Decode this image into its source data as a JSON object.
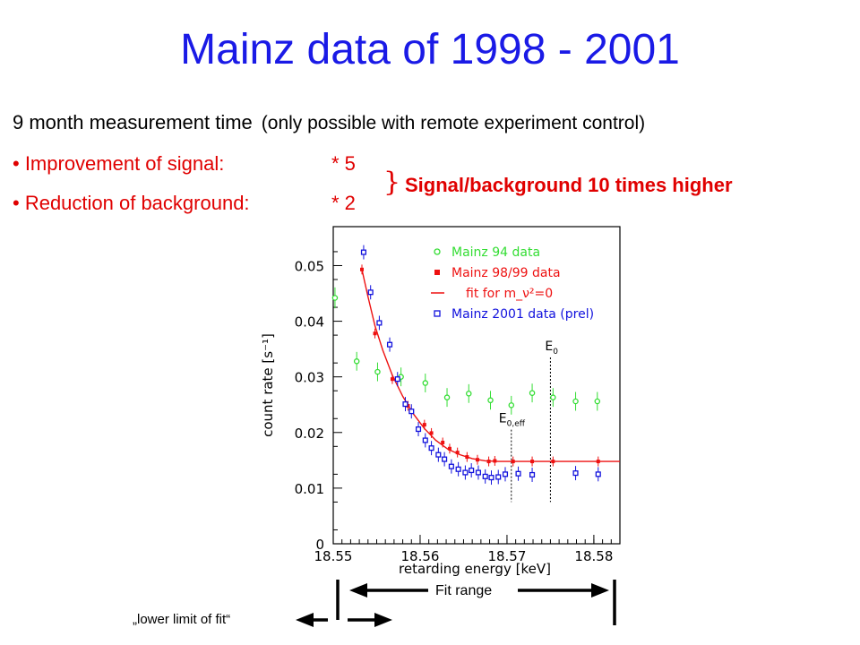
{
  "slide": {
    "title": "Mainz data of 1998 - 2001",
    "line1_main": "9 month measurement time",
    "line1_note": "(only possible with remote experiment control)",
    "bullet1_label": "• Improvement of signal:",
    "bullet1_value": "* 5",
    "bullet2_label": "• Reduction of background:",
    "bullet2_value": "* 2",
    "brace": "}",
    "signal_background": "Signal/background 10 times higher",
    "fit_range_label": "Fit range",
    "lower_limit_label": "„lower limit of fit“"
  },
  "colors": {
    "title": "#1a1ae6",
    "bullets": "#e00000",
    "mainz94": "#33dd33",
    "mainz9899": "#ee1111",
    "fit": "#ee1111",
    "mainz2001": "#1111dd"
  },
  "chart_data": {
    "type": "scatter",
    "xlabel": "retarding energy [keV]",
    "ylabel": "count rate [s⁻¹]",
    "xlim": [
      18.55,
      18.583
    ],
    "ylim": [
      0,
      0.057
    ],
    "x_ticks": [
      18.55,
      18.56,
      18.57,
      18.58
    ],
    "x_tick_labels": [
      "18.55",
      "18.56",
      "18.57",
      "18.58"
    ],
    "y_ticks": [
      0,
      0.01,
      0.02,
      0.03,
      0.04,
      0.05
    ],
    "y_tick_labels": [
      "0",
      "0.01",
      "0.02",
      "0.03",
      "0.04",
      "0.05"
    ],
    "legend_position": "top-right",
    "legend": [
      "Mainz 94 data",
      "Mainz 98/99 data",
      "fit for m_ν²=0",
      "Mainz 2001 data (prel)"
    ],
    "annotations": [
      {
        "label": "E",
        "sub": "0,eff",
        "x": 18.5705,
        "y_top": 0.0205
      },
      {
        "label": "E",
        "sub": "0",
        "x": 18.575,
        "y_top": 0.0335
      }
    ],
    "series": [
      {
        "name": "Mainz 94 data",
        "marker": "open-circle",
        "color": "#33dd33",
        "x": [
          18.5502,
          18.5527,
          18.5551,
          18.5578,
          18.5606,
          18.5631,
          18.5656,
          18.5681,
          18.5705,
          18.5729,
          18.5753,
          18.5779,
          18.5804
        ],
        "y": [
          0.0442,
          0.0328,
          0.0309,
          0.03,
          0.0289,
          0.0263,
          0.027,
          0.0258,
          0.0249,
          0.0271,
          0.0263,
          0.0256,
          0.0256
        ],
        "err": [
          0.0014,
          0.0012,
          0.0012,
          0.0012,
          0.0012,
          0.0012,
          0.0012,
          0.0012,
          0.0012,
          0.0012,
          0.0012,
          0.0012,
          0.0012
        ]
      },
      {
        "name": "Mainz 98/99 data",
        "marker": "filled-square",
        "color": "#ee1111",
        "x": [
          18.5533,
          18.5548,
          18.5568,
          18.5586,
          18.5605,
          18.5613,
          18.5626,
          18.5634,
          18.5643,
          18.5654,
          18.5666,
          18.5679,
          18.5686,
          18.5707,
          18.5729,
          18.5753,
          18.5805
        ],
        "y": [
          0.0493,
          0.0378,
          0.0296,
          0.0248,
          0.0214,
          0.0199,
          0.0182,
          0.0171,
          0.0164,
          0.0156,
          0.0151,
          0.0148,
          0.0149,
          0.0148,
          0.0148,
          0.0148,
          0.0148
        ],
        "err": [
          0.0004,
          0.0004,
          0.0004,
          0.0004,
          0.0004,
          0.0004,
          0.0004,
          0.0004,
          0.0004,
          0.0004,
          0.0004,
          0.0004,
          0.0004,
          0.0004,
          0.0004,
          0.0004,
          0.0004
        ]
      },
      {
        "name": "Mainz 2001 data (prel)",
        "marker": "open-square",
        "color": "#1111dd",
        "x": [
          18.5535,
          18.5543,
          18.5553,
          18.5565,
          18.5574,
          18.5583,
          18.559,
          18.5598,
          18.5606,
          18.5613,
          18.5621,
          18.5628,
          18.5636,
          18.5644,
          18.5652,
          18.5659,
          18.5667,
          18.5675,
          18.5682,
          18.569,
          18.5698,
          18.5713,
          18.5729,
          18.5779,
          18.5805
        ],
        "y": [
          0.0524,
          0.0452,
          0.0397,
          0.0358,
          0.0296,
          0.0251,
          0.0238,
          0.0206,
          0.0186,
          0.0172,
          0.016,
          0.0152,
          0.0139,
          0.0134,
          0.0128,
          0.0132,
          0.0128,
          0.0121,
          0.0119,
          0.012,
          0.0125,
          0.0126,
          0.0124,
          0.0127,
          0.0125
        ],
        "err": [
          0.0008,
          0.0008,
          0.0008,
          0.0008,
          0.0008,
          0.0008,
          0.0008,
          0.0008,
          0.0008,
          0.0008,
          0.0008,
          0.0008,
          0.0008,
          0.0008,
          0.0008,
          0.0008,
          0.0008,
          0.0008,
          0.0008,
          0.0008,
          0.0008,
          0.0008,
          0.0008,
          0.0008,
          0.0008
        ]
      }
    ],
    "fit": {
      "name": "fit for m_ν²=0",
      "color": "#ee1111",
      "x": [
        18.5533,
        18.554,
        18.5548,
        18.5557,
        18.5568,
        18.558,
        18.5592,
        18.5605,
        18.5618,
        18.5632,
        18.5646,
        18.566,
        18.5675,
        18.569,
        18.571,
        18.575,
        18.583
      ],
      "y": [
        0.0493,
        0.0444,
        0.0392,
        0.0348,
        0.0303,
        0.0265,
        0.0234,
        0.0207,
        0.0186,
        0.017,
        0.016,
        0.0153,
        0.0149,
        0.0148,
        0.0148,
        0.0148,
        0.0148
      ]
    }
  }
}
